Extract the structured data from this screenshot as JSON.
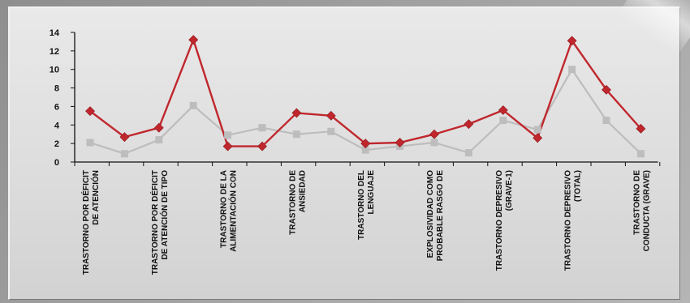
{
  "chart_data": {
    "type": "line",
    "categories": [
      [
        "TRASTORNO POR DÉFICIT",
        "DE ATENCIÓN"
      ],
      [],
      [
        "TRASTORNO POR DÉFICIT",
        "DE ATENCIÓN DE TIPO"
      ],
      [],
      [
        "TRASTORNO DE LA",
        "ALIMENTACIÓN CON"
      ],
      [],
      [
        "TRASTORNO DE",
        "ANSIEDAD"
      ],
      [],
      [
        "TRASTORNO DEL",
        "LENGUAJE"
      ],
      [],
      [
        "EXPLOSIVIDAD COMO",
        "PROBABLE RASGO DE"
      ],
      [],
      [
        "TRASTORNO DEPRESIVO",
        "(GRAVE-1)"
      ],
      [],
      [
        "TRASTORNO DEPRESIVO",
        "(TOTAL)"
      ],
      [],
      [
        "TRASTORNO DE",
        "CONDUCTA (GRAVE)"
      ]
    ],
    "series": [
      {
        "color": "#c0272d",
        "marker": "diamond",
        "values": [
          5.5,
          2.7,
          3.7,
          13.2,
          1.7,
          1.7,
          5.3,
          5.0,
          2.0,
          2.1,
          3.0,
          4.1,
          5.6,
          2.6,
          13.1,
          7.8,
          3.6
        ]
      },
      {
        "color": "#bdbdbd",
        "marker": "square",
        "values": [
          2.1,
          0.9,
          2.4,
          6.1,
          2.9,
          3.7,
          3.0,
          3.3,
          1.3,
          1.7,
          2.1,
          1.0,
          4.5,
          3.5,
          10.0,
          4.5,
          0.9
        ]
      }
    ],
    "yticks": [
      0,
      2,
      4,
      6,
      8,
      10,
      12,
      14
    ],
    "ylim": [
      0,
      14
    ],
    "grid": false
  }
}
